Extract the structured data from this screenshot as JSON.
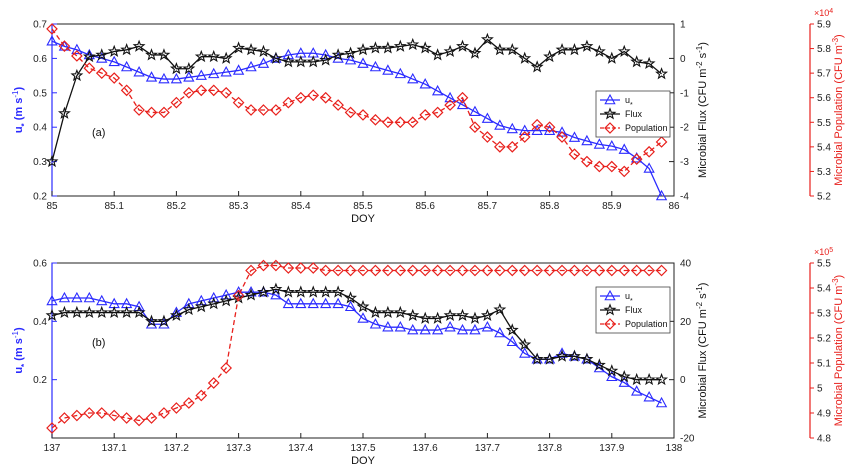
{
  "colors": {
    "ustar": "#2b2bff",
    "flux": "#111111",
    "pop": "#e8201c",
    "axis": "#222222"
  },
  "chart_data": [
    {
      "type": "line",
      "panel_label": "(a)",
      "xlabel": "DOY",
      "ylabel_left": "u* (m s-1)",
      "ylabel_right1": "Microbial Flux (CFU m-2 s-1)",
      "ylabel_right2": "Microbial Population (CFU m-3)",
      "right2_exponent": "×10^4",
      "xlim": [
        85,
        86
      ],
      "ylim_left": [
        0.2,
        0.7
      ],
      "ylim_right1": [
        -4,
        1
      ],
      "ylim_right2": [
        52000,
        59000
      ],
      "x_ticks": [
        "85",
        "85.1",
        "85.2",
        "85.3",
        "85.4",
        "85.5",
        "85.6",
        "85.7",
        "85.8",
        "85.9",
        "86"
      ],
      "left_ticks": [
        "0.2",
        "0.3",
        "0.4",
        "0.5",
        "0.6",
        "0.7"
      ],
      "right1_ticks": [
        "-4",
        "-3",
        "-2",
        "-1",
        "0",
        "1"
      ],
      "right2_ticks": [
        "5.2",
        "5.3",
        "5.4",
        "5.5",
        "5.6",
        "5.7",
        "5.8",
        "5.9"
      ],
      "legend_position": "right",
      "x": [
        85.0,
        85.02,
        85.04,
        85.06,
        85.08,
        85.1,
        85.12,
        85.14,
        85.16,
        85.18,
        85.2,
        85.22,
        85.24,
        85.26,
        85.28,
        85.3,
        85.32,
        85.34,
        85.36,
        85.38,
        85.4,
        85.42,
        85.44,
        85.46,
        85.48,
        85.5,
        85.52,
        85.54,
        85.56,
        85.58,
        85.6,
        85.62,
        85.64,
        85.66,
        85.68,
        85.7,
        85.72,
        85.74,
        85.76,
        85.78,
        85.8,
        85.82,
        85.84,
        85.86,
        85.88,
        85.9,
        85.92,
        85.94,
        85.96,
        85.98
      ],
      "series": [
        {
          "name": "u*",
          "axis": "left",
          "marker": "triangle",
          "values": [
            0.65,
            0.635,
            0.625,
            0.61,
            0.6,
            0.59,
            0.575,
            0.56,
            0.545,
            0.54,
            0.54,
            0.545,
            0.55,
            0.555,
            0.56,
            0.565,
            0.575,
            0.585,
            0.6,
            0.61,
            0.615,
            0.615,
            0.61,
            0.6,
            0.595,
            0.585,
            0.575,
            0.565,
            0.555,
            0.54,
            0.525,
            0.505,
            0.485,
            0.465,
            0.445,
            0.425,
            0.405,
            0.395,
            0.39,
            0.39,
            0.39,
            0.385,
            0.37,
            0.36,
            0.35,
            0.345,
            0.335,
            0.31,
            0.28,
            0.2
          ]
        },
        {
          "name": "Flux",
          "axis": "right1",
          "marker": "star",
          "values": [
            -3.0,
            -1.6,
            -0.5,
            0.05,
            0.1,
            0.2,
            0.25,
            0.35,
            0.1,
            0.1,
            -0.3,
            -0.3,
            0.05,
            0.05,
            0.0,
            0.3,
            0.25,
            0.2,
            0.0,
            -0.1,
            -0.1,
            -0.1,
            -0.05,
            0.1,
            0.15,
            0.25,
            0.3,
            0.3,
            0.35,
            0.4,
            0.3,
            0.1,
            0.2,
            0.35,
            0.15,
            0.55,
            0.25,
            0.25,
            0.0,
            -0.25,
            0.05,
            0.25,
            0.25,
            0.35,
            0.2,
            0.0,
            0.2,
            -0.1,
            -0.15,
            -0.45
          ]
        },
        {
          "name": "Population",
          "axis": "right2",
          "marker": "diamond",
          "values": [
            58800,
            58100,
            57700,
            57200,
            57000,
            56800,
            56300,
            55500,
            55400,
            55400,
            55800,
            56200,
            56300,
            56300,
            56200,
            55800,
            55500,
            55500,
            55500,
            55800,
            56000,
            56100,
            56000,
            55700,
            55400,
            55300,
            55100,
            55000,
            55000,
            55000,
            55300,
            55400,
            55700,
            56000,
            54800,
            54400,
            54000,
            54000,
            54400,
            54900,
            54800,
            54400,
            53700,
            53400,
            53200,
            53200,
            53000,
            53500,
            53800,
            54200
          ]
        }
      ]
    },
    {
      "type": "line",
      "panel_label": "(b)",
      "xlabel": "DOY",
      "ylabel_left": "u* (m s-1)",
      "ylabel_right1": "Microbial Flux (CFU m-2 s-1)",
      "ylabel_right2": "Microbial Population (CFU m-3)",
      "right2_exponent": "×10^5",
      "xlim": [
        137,
        138
      ],
      "ylim_left": [
        0.0,
        0.6
      ],
      "ylim_right1": [
        -20,
        40
      ],
      "ylim_right2": [
        480000,
        550000
      ],
      "x_ticks": [
        "137",
        "137.1",
        "137.2",
        "137.3",
        "137.4",
        "137.5",
        "137.6",
        "137.7",
        "137.8",
        "137.9",
        "138"
      ],
      "left_ticks": [
        "0.2",
        "0.4",
        "0.6"
      ],
      "right1_ticks": [
        "-20",
        "0",
        "20",
        "40"
      ],
      "right2_ticks": [
        "4.8",
        "4.9",
        "5",
        "5.1",
        "5.2",
        "5.3",
        "5.4",
        "5.5"
      ],
      "legend_position": "right",
      "x": [
        137.0,
        137.02,
        137.04,
        137.06,
        137.08,
        137.1,
        137.12,
        137.14,
        137.16,
        137.18,
        137.2,
        137.22,
        137.24,
        137.26,
        137.28,
        137.3,
        137.32,
        137.34,
        137.36,
        137.38,
        137.4,
        137.42,
        137.44,
        137.46,
        137.48,
        137.5,
        137.52,
        137.54,
        137.56,
        137.58,
        137.6,
        137.62,
        137.64,
        137.66,
        137.68,
        137.7,
        137.72,
        137.74,
        137.76,
        137.78,
        137.8,
        137.82,
        137.84,
        137.86,
        137.88,
        137.9,
        137.92,
        137.94,
        137.96,
        137.98
      ],
      "series": [
        {
          "name": "u*",
          "axis": "left",
          "marker": "triangle",
          "values": [
            0.47,
            0.48,
            0.48,
            0.48,
            0.47,
            0.46,
            0.46,
            0.45,
            0.39,
            0.39,
            0.43,
            0.46,
            0.47,
            0.48,
            0.49,
            0.5,
            0.5,
            0.5,
            0.49,
            0.46,
            0.46,
            0.46,
            0.46,
            0.46,
            0.45,
            0.41,
            0.39,
            0.38,
            0.38,
            0.37,
            0.37,
            0.37,
            0.38,
            0.37,
            0.37,
            0.38,
            0.36,
            0.33,
            0.29,
            0.27,
            0.27,
            0.29,
            0.28,
            0.27,
            0.24,
            0.21,
            0.19,
            0.16,
            0.14,
            0.12
          ]
        },
        {
          "name": "Flux",
          "axis": "right1",
          "marker": "star",
          "values": [
            22,
            23,
            23,
            23,
            23,
            23,
            23,
            23,
            20,
            20,
            22,
            24,
            25,
            26,
            27,
            28,
            29,
            30,
            31,
            30,
            30,
            30,
            30,
            30,
            28,
            25,
            23,
            23,
            23,
            22,
            21,
            21,
            22,
            22,
            21,
            22,
            24,
            17,
            12,
            7,
            7,
            8,
            8,
            7,
            5,
            3,
            1,
            0,
            0,
            0
          ]
        },
        {
          "name": "Population",
          "axis": "right2",
          "marker": "diamond",
          "values": [
            484000,
            488000,
            489000,
            490000,
            490000,
            489000,
            488000,
            487000,
            488000,
            490000,
            492000,
            494000,
            497000,
            502000,
            508000,
            537000,
            547000,
            549000,
            549000,
            548000,
            548000,
            548000,
            547000,
            547000,
            547000,
            547000,
            547000,
            547000,
            547000,
            547000,
            547000,
            547000,
            547000,
            547000,
            547000,
            547000,
            547000,
            547000,
            547000,
            547000,
            547000,
            547000,
            547000,
            547000,
            547000,
            547000,
            547000,
            547000,
            547000,
            547000
          ]
        }
      ]
    }
  ]
}
